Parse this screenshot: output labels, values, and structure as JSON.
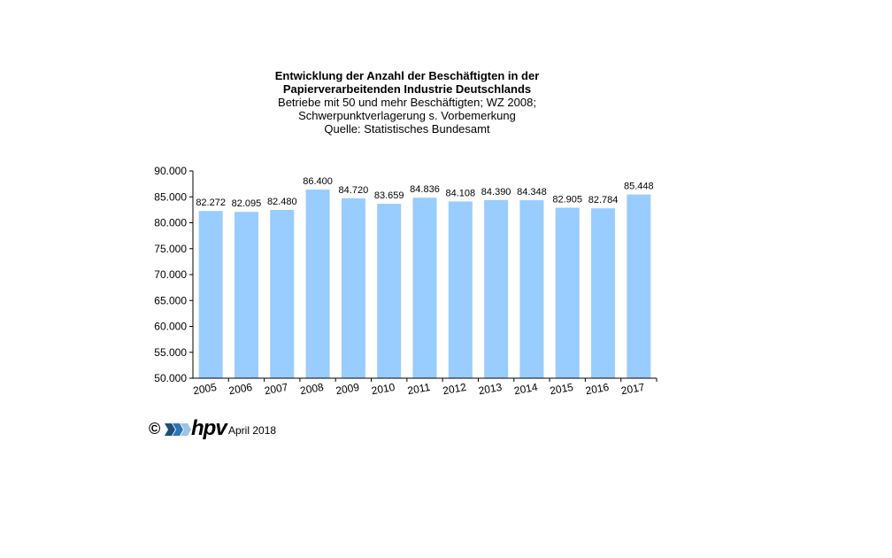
{
  "title": {
    "line1": "Entwicklung der Anzahl der Beschäftigten in der",
    "line2": "Papierverarbeitenden Industrie Deutschlands",
    "sub1": "Betriebe mit 50 und mehr Beschäftigten;  WZ 2008;",
    "sub2": "Schwerpunktverlagerung   s. Vorbemerkung",
    "sub3": "Quelle:  Statistisches Bundesamt"
  },
  "footer": {
    "copyright": "©",
    "logo": "hpv",
    "date": "April 2018"
  },
  "colors": {
    "bar": "#99ccff",
    "axis": "#000000"
  },
  "chart_data": {
    "type": "bar",
    "categories": [
      "2005",
      "2006",
      "2007",
      "2008",
      "2009",
      "2010",
      "2011",
      "2012",
      "2013",
      "2014",
      "2015",
      "2016",
      "2017"
    ],
    "values": [
      82272,
      82095,
      82480,
      86400,
      84720,
      83659,
      84836,
      84108,
      84390,
      84348,
      82905,
      82784,
      85448
    ],
    "value_labels": [
      "82.272",
      "82.095",
      "82.480",
      "86.400",
      "84.720",
      "83.659",
      "84.836",
      "84.108",
      "84.390",
      "84.348",
      "82.905",
      "82.784",
      "85.448"
    ],
    "yticks": [
      50000,
      55000,
      60000,
      65000,
      70000,
      75000,
      80000,
      85000,
      90000
    ],
    "ytick_labels": [
      "50.000",
      "55.000",
      "60.000",
      "65.000",
      "70.000",
      "75.000",
      "80.000",
      "85.000",
      "90.000"
    ],
    "ylim": [
      50000,
      90000
    ],
    "grid": false,
    "legend": "none"
  }
}
